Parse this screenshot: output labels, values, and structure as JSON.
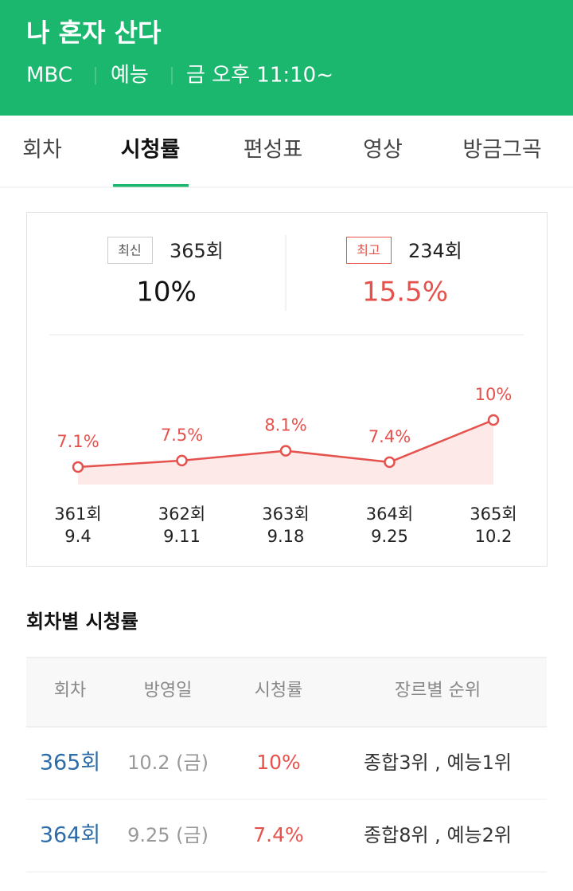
{
  "header": {
    "title": "나 혼자 산다",
    "meta": [
      "MBC",
      "예능",
      "금 오후 11:10~"
    ]
  },
  "tabs": [
    "회차",
    "시청률",
    "편성표",
    "영상",
    "방금그곡"
  ],
  "summary": {
    "latest": {
      "badge": "최신",
      "episode": "365회",
      "rating": "10%"
    },
    "best": {
      "badge": "최고",
      "episode": "234회",
      "rating": "15.5%"
    }
  },
  "chart_data": {
    "type": "line",
    "categories": [
      "361회",
      "362회",
      "363회",
      "364회",
      "365회"
    ],
    "dates": [
      "9.4",
      "9.11",
      "9.18",
      "9.25",
      "10.2"
    ],
    "values": [
      7.1,
      7.5,
      8.1,
      7.4,
      10
    ],
    "value_labels": [
      "7.1%",
      "7.5%",
      "8.1%",
      "7.4%",
      "10%"
    ],
    "color": "#e5524d",
    "area_color": "#fde9e8"
  },
  "section_title": "회차별 시청률",
  "table": {
    "columns": [
      "회차",
      "방영일",
      "시청률",
      "장르별 순위"
    ],
    "rows": [
      [
        "365회",
        "10.2 (금)",
        "10%",
        "종합3위 , 예능1위"
      ],
      [
        "364회",
        "9.25 (금)",
        "7.4%",
        "종합8위 , 예능2위"
      ]
    ]
  }
}
